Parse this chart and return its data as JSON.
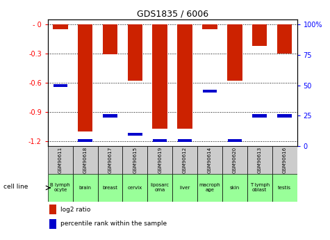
{
  "title": "GDS1835 / 6006",
  "samples": [
    "GSM90611",
    "GSM90618",
    "GSM90617",
    "GSM90615",
    "GSM90619",
    "GSM90612",
    "GSM90614",
    "GSM90620",
    "GSM90613",
    "GSM90616"
  ],
  "cell_lines": [
    "B lymph\nocyte",
    "brain",
    "breast",
    "cervix",
    "liposarc\noma",
    "liver",
    "macroph\nage",
    "skin",
    "T lymph\noblast",
    "testis"
  ],
  "log2_ratio": [
    -0.05,
    -1.1,
    -0.31,
    -0.58,
    -1.07,
    -1.07,
    -0.05,
    -0.58,
    -0.22,
    -0.3
  ],
  "percentile_rank": [
    50,
    5,
    25,
    10,
    5,
    5,
    45,
    5,
    25,
    25
  ],
  "ylim_left": [
    -1.25,
    0.05
  ],
  "yticks_left": [
    0,
    -0.3,
    -0.6,
    -0.9,
    -1.2
  ],
  "ytick_labels_left": [
    "- 0",
    "-0.3",
    "-0.6",
    "-0.9",
    "-1.2"
  ],
  "yticks_right": [
    0,
    25,
    50,
    75,
    100
  ],
  "ytick_labels_right": [
    "0",
    "25",
    "50",
    "75",
    "100%"
  ],
  "bar_color": "#cc2200",
  "marker_color": "#0000cc",
  "bg_color_header": "#cccccc",
  "bg_color_cell": "#99ff99",
  "legend_red_label": "log2 ratio",
  "legend_blue_label": "percentile rank within the sample"
}
